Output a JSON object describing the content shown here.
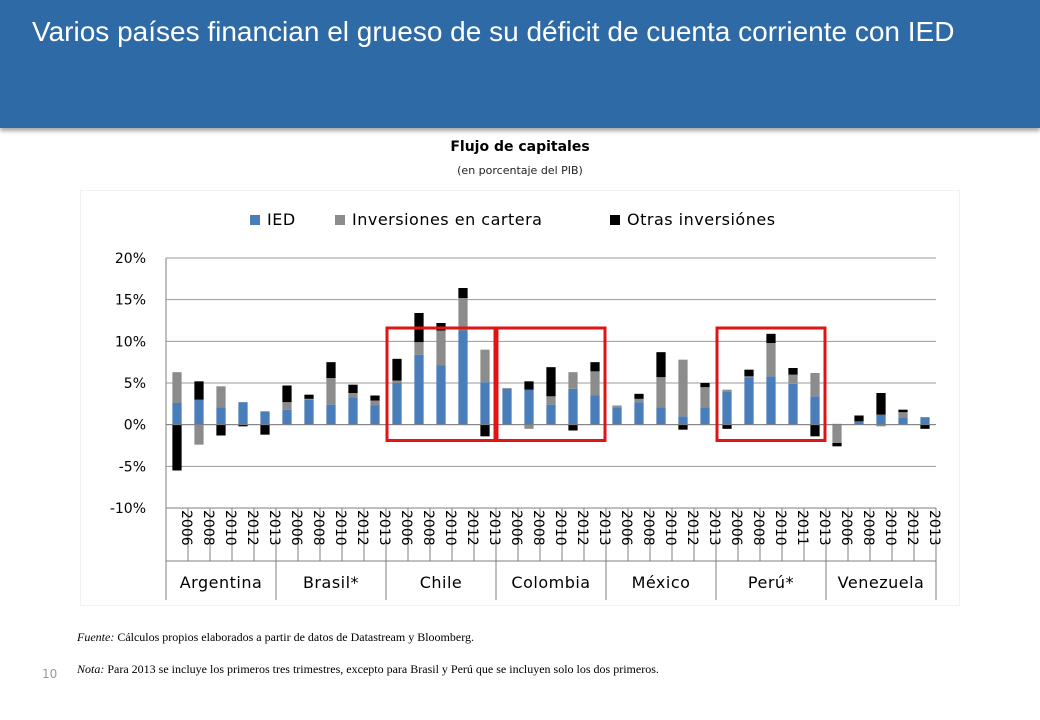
{
  "slide": {
    "title": "Varios países financian el grueso de su déficit de cuenta corriente con IED",
    "page_number": "10",
    "source_label": "Fuente:",
    "source_text": " Cálculos propios elaborados a partir de datos de Datastream y Bloomberg.",
    "note_label": "Nota:",
    "note_text": " Para 2013 se incluye los primeros tres trimestres, excepto para Brasil y Perú que se incluyen solo los dos primeros."
  },
  "chart_data": {
    "type": "bar",
    "stacked": true,
    "title": "Flujo de capitales",
    "subtitle": "(en porcentaje del PIB)",
    "ylim": [
      -10,
      20
    ],
    "yticks": [
      -10,
      -5,
      0,
      5,
      10,
      15,
      20
    ],
    "ytick_labels": [
      "-10%",
      "-5%",
      "0%",
      "5%",
      "10%",
      "15%",
      "20%"
    ],
    "grid": true,
    "legend_position": "top",
    "series": [
      {
        "name": "IED",
        "color": "#4a7ebb"
      },
      {
        "name": "Inversiones en cartera",
        "color": "#8c8c8c"
      },
      {
        "name": "Otras inversiónes",
        "color": "#000000"
      }
    ],
    "groups": [
      {
        "name": "Argentina",
        "bars": [
          {
            "x": "2006",
            "v": [
              2.6,
              3.7,
              -5.5
            ]
          },
          {
            "x": "2008",
            "v": [
              3.0,
              -2.4,
              2.2
            ]
          },
          {
            "x": "2010",
            "v": [
              2.1,
              2.5,
              -1.3
            ]
          },
          {
            "x": "2012",
            "v": [
              2.7,
              0,
              -0.2
            ]
          },
          {
            "x": "2013",
            "v": [
              1.6,
              0,
              -1.2
            ]
          }
        ]
      },
      {
        "name": "Brasil*",
        "bars": [
          {
            "x": "2006",
            "v": [
              1.8,
              0.9,
              2.0
            ]
          },
          {
            "x": "2008",
            "v": [
              3.0,
              0.1,
              0.5
            ]
          },
          {
            "x": "2010",
            "v": [
              2.4,
              3.2,
              1.9
            ]
          },
          {
            "x": "2012",
            "v": [
              3.3,
              0.5,
              1.0
            ]
          },
          {
            "x": "2013",
            "v": [
              2.3,
              0.6,
              0.6
            ]
          }
        ]
      },
      {
        "name": "Chile",
        "bars": [
          {
            "x": "2006",
            "v": [
              5.0,
              0.3,
              2.6
            ]
          },
          {
            "x": "2008",
            "v": [
              8.4,
              1.5,
              3.5
            ]
          },
          {
            "x": "2010",
            "v": [
              7.1,
              4.2,
              0.9
            ]
          },
          {
            "x": "2012",
            "v": [
              11.3,
              3.9,
              1.2
            ]
          },
          {
            "x": "2013",
            "v": [
              5.1,
              3.9,
              -1.4
            ]
          }
        ]
      },
      {
        "name": "Colombia",
        "bars": [
          {
            "x": "2006",
            "v": [
              4.3,
              0.1,
              0
            ]
          },
          {
            "x": "2008",
            "v": [
              4.2,
              -0.5,
              1.0
            ]
          },
          {
            "x": "2010",
            "v": [
              2.4,
              1.0,
              3.5
            ]
          },
          {
            "x": "2012",
            "v": [
              4.3,
              2.0,
              -0.7
            ]
          },
          {
            "x": "2013",
            "v": [
              3.5,
              2.9,
              1.1
            ]
          }
        ]
      },
      {
        "name": "México",
        "bars": [
          {
            "x": "2006",
            "v": [
              2.0,
              0.3,
              0
            ]
          },
          {
            "x": "2008",
            "v": [
              2.7,
              0.4,
              0.6
            ]
          },
          {
            "x": "2010",
            "v": [
              2.1,
              3.6,
              3.0
            ]
          },
          {
            "x": "2012",
            "v": [
              1.0,
              6.8,
              -0.6
            ]
          },
          {
            "x": "2013",
            "v": [
              2.1,
              2.4,
              0.5
            ]
          }
        ]
      },
      {
        "name": "Perú*",
        "bars": [
          {
            "x": "2006",
            "v": [
              4.0,
              0.2,
              -0.5
            ]
          },
          {
            "x": "2008",
            "v": [
              5.7,
              0.1,
              0.8
            ]
          },
          {
            "x": "2010",
            "v": [
              5.8,
              4.0,
              1.1
            ]
          },
          {
            "x": "2011",
            "v": [
              4.9,
              1.1,
              0.8
            ]
          },
          {
            "x": "2013",
            "v": [
              3.4,
              2.8,
              -1.4
            ]
          }
        ]
      },
      {
        "name": "Venezuela",
        "bars": [
          {
            "x": "2006",
            "v": [
              0.1,
              -2.2,
              -0.4
            ]
          },
          {
            "x": "2008",
            "v": [
              0.4,
              0,
              0.7
            ]
          },
          {
            "x": "2010",
            "v": [
              1.2,
              -0.2,
              2.6
            ]
          },
          {
            "x": "2012",
            "v": [
              0.8,
              0.7,
              0.3
            ]
          },
          {
            "x": "2013",
            "v": [
              0.9,
              0,
              -0.5
            ]
          }
        ]
      }
    ],
    "highlight_boxes": [
      {
        "from": "Chile",
        "to": "Chile"
      },
      {
        "from": "Colombia",
        "to": "Colombia"
      },
      {
        "from": "Perú*",
        "to": "Perú*"
      }
    ],
    "highlight_color": "#e01414"
  }
}
